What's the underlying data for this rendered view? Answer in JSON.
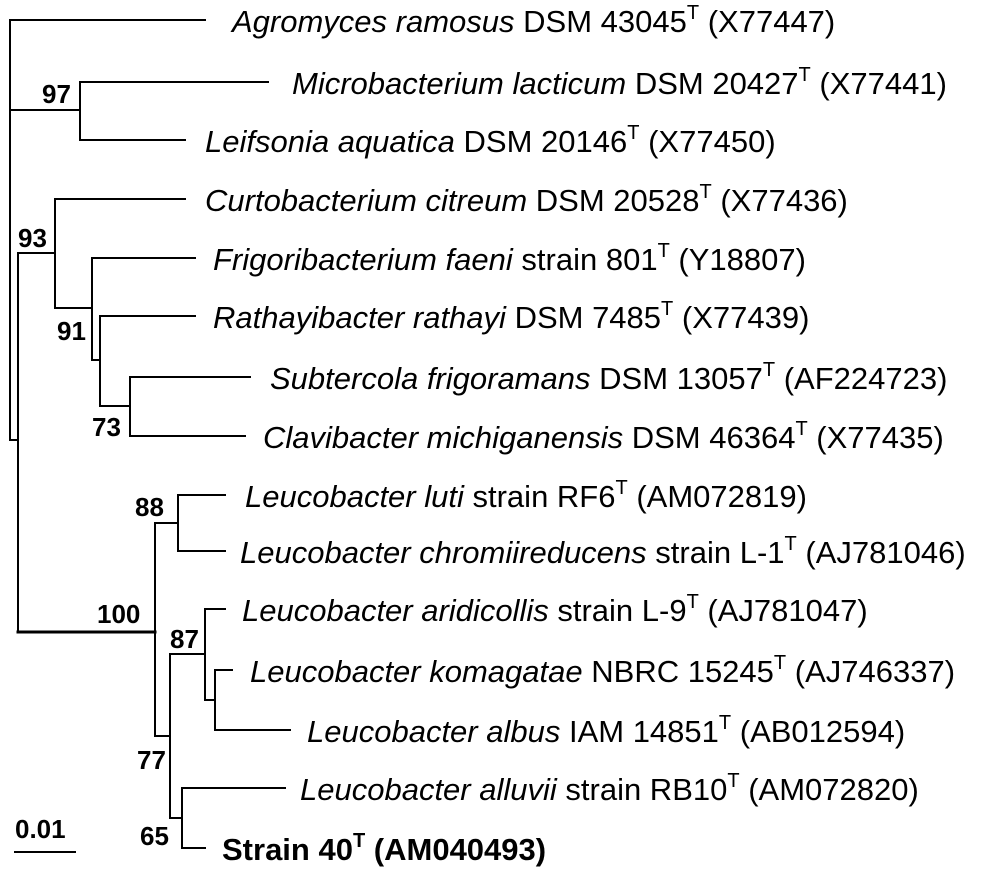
{
  "tree": {
    "taxa": [
      {
        "name": "Agromyces ramosus",
        "strain": "DSM 43045",
        "type": "T",
        "accession": "(X77447)"
      },
      {
        "name": "Microbacterium lacticum",
        "strain": "DSM 20427",
        "type": "T",
        "accession": "(X77441)"
      },
      {
        "name": "Leifsonia aquatica",
        "strain": "DSM 20146",
        "type": "T",
        "accession": "(X77450)"
      },
      {
        "name": "Curtobacterium citreum",
        "strain": "DSM 20528",
        "type": "T",
        "accession": "(X77436)"
      },
      {
        "name": "Frigoribacterium faeni",
        "strain": "strain 801",
        "type": "T",
        "accession": "(Y18807)"
      },
      {
        "name": "Rathayibacter rathayi",
        "strain": "DSM 7485",
        "type": "T",
        "accession": "(X77439)"
      },
      {
        "name": "Subtercola frigoramans",
        "strain": "DSM 13057",
        "type": "T",
        "accession": "(AF224723)"
      },
      {
        "name": "Clavibacter michiganensis",
        "strain": "DSM 46364",
        "type": "T",
        "accession": "(X77435)"
      },
      {
        "name": "Leucobacter luti",
        "strain": "strain RF6",
        "type": "T",
        "accession": "(AM072819)"
      },
      {
        "name": "Leucobacter chromiireducens",
        "strain": "strain L-1",
        "type": "T",
        "accession": "(AJ781046)"
      },
      {
        "name": "Leucobacter aridicollis",
        "strain": "strain L-9",
        "type": "T",
        "accession": "(AJ781047)"
      },
      {
        "name": "Leucobacter komagatae",
        "strain": "NBRC 15245",
        "type": "T",
        "accession": "(AJ746337)"
      },
      {
        "name": "Leucobacter albus",
        "strain": "IAM 14851",
        "type": "T",
        "accession": "(AB012594)"
      },
      {
        "name": "Leucobacter alluvii",
        "strain": "strain RB10",
        "type": "T",
        "accession": "(AM072820)"
      },
      {
        "name": "Strain 40",
        "type": "T",
        "accession": "(AM040493)"
      }
    ],
    "bootstrap_values": [
      97,
      93,
      91,
      73,
      88,
      100,
      87,
      77,
      65
    ]
  },
  "scale_bar": {
    "label": "0.01"
  }
}
